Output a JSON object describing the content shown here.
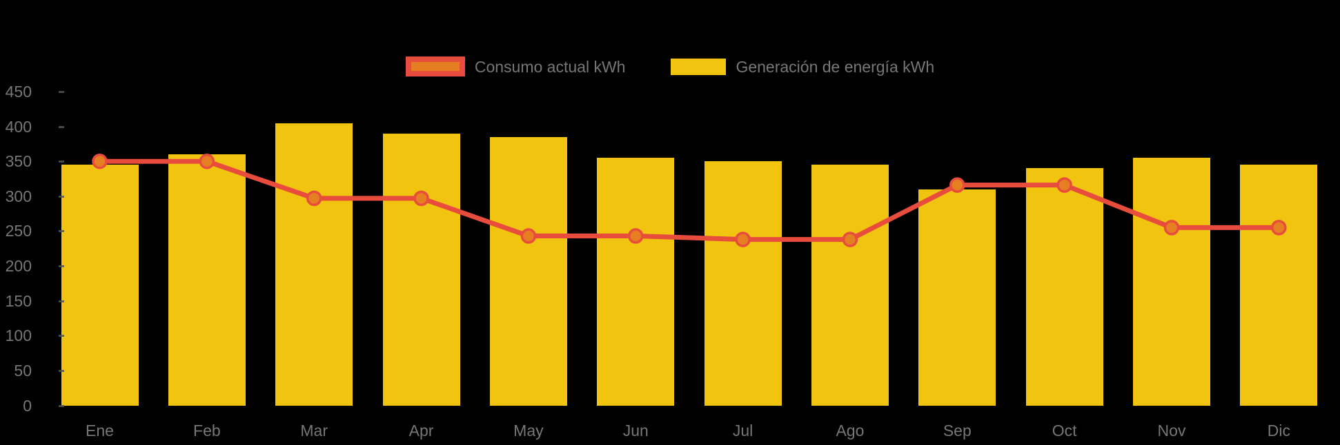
{
  "chart": {
    "background_color": "#000000",
    "text_color": "#777777"
  },
  "legend": {
    "items": [
      {
        "swatch_fill": "#E67E22",
        "swatch_border": "#E74C3C"
      },
      {
        "swatch_fill": "#F1C40F",
        "swatch_border": "#F1C40F"
      }
    ]
  },
  "chart_data": {
    "type": "combo",
    "categories": [
      "Ene",
      "Feb",
      "Mar",
      "Apr",
      "May",
      "Jun",
      "Jul",
      "Ago",
      "Sep",
      "Oct",
      "Nov",
      "Dic"
    ],
    "series": [
      {
        "name": "Consumo actual kWh",
        "type": "line",
        "color": "#E74C3C",
        "marker_fill": "#E67E22",
        "values": [
          350,
          350,
          297,
          297,
          243,
          243,
          238,
          238,
          316,
          316,
          255,
          255
        ]
      },
      {
        "name": "Generación de energía kWh",
        "type": "bar",
        "color": "#F1C40F",
        "values": [
          345,
          360,
          405,
          390,
          385,
          355,
          350,
          345,
          310,
          340,
          355,
          345
        ]
      }
    ],
    "title": "",
    "xlabel": "",
    "ylabel": "",
    "ylim": [
      0,
      450
    ],
    "ytick_step": 50,
    "yticks": [
      0,
      50,
      100,
      150,
      200,
      250,
      300,
      350,
      400,
      450
    ],
    "grid": false,
    "legend_position": "top-center"
  }
}
